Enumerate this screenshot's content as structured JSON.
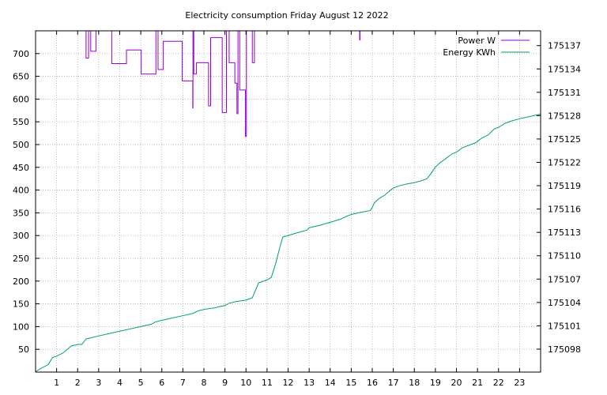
{
  "chart_data": {
    "type": "line",
    "title": "Electricity consumption Friday August 12 2022",
    "xlabel": "",
    "ylabel": "",
    "y2label": "",
    "xlim": [
      0,
      24
    ],
    "ylim": [
      0,
      750
    ],
    "y2lim": [
      175095.05,
      175138.9
    ],
    "x_ticks": [
      1,
      2,
      3,
      4,
      5,
      6,
      7,
      8,
      9,
      10,
      11,
      12,
      13,
      14,
      15,
      16,
      17,
      18,
      19,
      20,
      21,
      22,
      23
    ],
    "y_ticks": [
      50,
      100,
      150,
      200,
      250,
      300,
      350,
      400,
      450,
      500,
      550,
      600,
      650,
      700
    ],
    "y2_ticks": [
      175098,
      175101,
      175104,
      175107,
      175110,
      175113,
      175116,
      175119,
      175122,
      175125,
      175128,
      175131,
      175134,
      175137
    ],
    "grid": true,
    "legend_position": "top-right",
    "series": [
      {
        "name": "Power W",
        "axis": "y",
        "color": "#9400d3",
        "style": "step",
        "points": [
          [
            2.35,
            750
          ],
          [
            2.4,
            690
          ],
          [
            2.5,
            690
          ],
          [
            2.52,
            750
          ],
          [
            2.6,
            750
          ],
          [
            2.62,
            705
          ],
          [
            2.85,
            705
          ],
          [
            2.87,
            750
          ],
          [
            3.6,
            750
          ],
          [
            3.62,
            678
          ],
          [
            4.3,
            678
          ],
          [
            4.32,
            708
          ],
          [
            5.0,
            708
          ],
          [
            5.02,
            655
          ],
          [
            5.7,
            655
          ],
          [
            5.72,
            750
          ],
          [
            5.8,
            750
          ],
          [
            5.82,
            665
          ],
          [
            6.05,
            665
          ],
          [
            6.07,
            727
          ],
          [
            6.95,
            727
          ],
          [
            6.97,
            640
          ],
          [
            7.45,
            640
          ],
          [
            7.47,
            580
          ],
          [
            7.48,
            750
          ],
          [
            7.5,
            750
          ],
          [
            7.52,
            655
          ],
          [
            7.62,
            655
          ],
          [
            7.64,
            680
          ],
          [
            8.2,
            680
          ],
          [
            8.22,
            585
          ],
          [
            8.3,
            585
          ],
          [
            8.32,
            735
          ],
          [
            8.85,
            735
          ],
          [
            8.87,
            570
          ],
          [
            9.05,
            570
          ],
          [
            9.07,
            750
          ],
          [
            9.18,
            750
          ],
          [
            9.2,
            680
          ],
          [
            9.45,
            680
          ],
          [
            9.47,
            635
          ],
          [
            9.55,
            635
          ],
          [
            9.57,
            568
          ],
          [
            9.6,
            568
          ],
          [
            9.62,
            750
          ],
          [
            9.68,
            750
          ],
          [
            9.7,
            620
          ],
          [
            9.95,
            620
          ],
          [
            9.97,
            518
          ],
          [
            10.0,
            518
          ],
          [
            10.02,
            750
          ],
          [
            10.28,
            750
          ],
          [
            10.3,
            680
          ],
          [
            10.38,
            680
          ],
          [
            10.4,
            750
          ],
          [
            15.38,
            750
          ],
          [
            15.4,
            730
          ],
          [
            15.42,
            750
          ]
        ]
      },
      {
        "name": "Energy KWh",
        "axis": "y2",
        "color": "#009e73",
        "style": "line",
        "points": [
          [
            0.0,
            175095.1
          ],
          [
            0.3,
            175095.6
          ],
          [
            0.6,
            175096.0
          ],
          [
            0.8,
            175096.9
          ],
          [
            1.0,
            175097.1
          ],
          [
            1.3,
            175097.5
          ],
          [
            1.7,
            175098.4
          ],
          [
            2.0,
            175098.6
          ],
          [
            2.2,
            175098.6
          ],
          [
            2.4,
            175099.3
          ],
          [
            3.0,
            175099.7
          ],
          [
            3.5,
            175100.0
          ],
          [
            4.0,
            175100.3
          ],
          [
            4.5,
            175100.6
          ],
          [
            5.0,
            175100.9
          ],
          [
            5.5,
            175101.2
          ],
          [
            5.7,
            175101.5
          ],
          [
            6.0,
            175101.7
          ],
          [
            6.5,
            175102.0
          ],
          [
            7.0,
            175102.3
          ],
          [
            7.5,
            175102.6
          ],
          [
            7.7,
            175102.9
          ],
          [
            8.0,
            175103.1
          ],
          [
            8.5,
            175103.3
          ],
          [
            8.8,
            175103.5
          ],
          [
            9.0,
            175103.6
          ],
          [
            9.2,
            175103.9
          ],
          [
            9.5,
            175104.1
          ],
          [
            10.0,
            175104.3
          ],
          [
            10.3,
            175104.6
          ],
          [
            10.6,
            175106.5
          ],
          [
            11.0,
            175106.9
          ],
          [
            11.2,
            175107.2
          ],
          [
            11.4,
            175108.9
          ],
          [
            11.6,
            175111.0
          ],
          [
            11.75,
            175112.4
          ],
          [
            12.0,
            175112.6
          ],
          [
            12.5,
            175113.0
          ],
          [
            12.9,
            175113.3
          ],
          [
            13.0,
            175113.6
          ],
          [
            13.5,
            175113.9
          ],
          [
            14.0,
            175114.3
          ],
          [
            14.5,
            175114.7
          ],
          [
            14.8,
            175115.1
          ],
          [
            15.0,
            175115.3
          ],
          [
            15.5,
            175115.6
          ],
          [
            15.9,
            175115.8
          ],
          [
            16.0,
            175116.2
          ],
          [
            16.1,
            175116.8
          ],
          [
            16.3,
            175117.3
          ],
          [
            16.6,
            175117.8
          ],
          [
            16.9,
            175118.5
          ],
          [
            17.0,
            175118.7
          ],
          [
            17.3,
            175119.0
          ],
          [
            17.6,
            175119.2
          ],
          [
            18.0,
            175119.4
          ],
          [
            18.3,
            175119.6
          ],
          [
            18.6,
            175119.9
          ],
          [
            18.8,
            175120.6
          ],
          [
            19.0,
            175121.4
          ],
          [
            19.2,
            175121.9
          ],
          [
            19.5,
            175122.5
          ],
          [
            19.8,
            175123.1
          ],
          [
            20.0,
            175123.3
          ],
          [
            20.3,
            175123.9
          ],
          [
            20.6,
            175124.2
          ],
          [
            20.9,
            175124.5
          ],
          [
            21.2,
            175125.1
          ],
          [
            21.5,
            175125.5
          ],
          [
            21.8,
            175126.3
          ],
          [
            22.0,
            175126.5
          ],
          [
            22.3,
            175127.0
          ],
          [
            22.6,
            175127.3
          ],
          [
            23.0,
            175127.6
          ],
          [
            23.5,
            175127.9
          ],
          [
            24.0,
            175128.2
          ]
        ]
      }
    ]
  }
}
